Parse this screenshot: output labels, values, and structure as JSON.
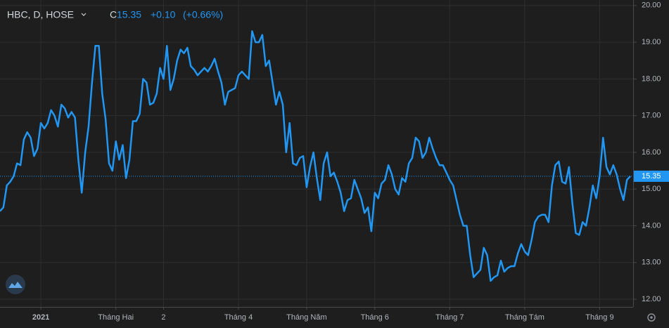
{
  "chart_data": {
    "type": "line",
    "symbol": "HBC, D, HOSE",
    "close_prefix": "C",
    "change": "+0.10",
    "change_pct": "(+0.66%)",
    "last": 15.35,
    "categories": [
      null,
      null,
      null,
      null,
      null,
      null,
      null,
      null,
      null,
      null,
      null,
      null,
      "2021",
      null,
      null,
      null,
      null,
      null,
      null,
      null,
      null,
      null,
      null,
      null,
      null,
      null,
      null,
      null,
      null,
      null,
      null,
      null,
      null,
      null,
      "Tháng Hai",
      null,
      null,
      null,
      null,
      null,
      null,
      null,
      null,
      null,
      null,
      null,
      null,
      null,
      "2",
      null,
      null,
      null,
      null,
      null,
      null,
      null,
      null,
      null,
      null,
      null,
      null,
      null,
      null,
      null,
      null,
      null,
      null,
      null,
      null,
      null,
      "Tháng 4",
      null,
      null,
      null,
      null,
      null,
      null,
      null,
      null,
      null,
      null,
      null,
      null,
      null,
      null,
      null,
      null,
      null,
      null,
      null,
      "Tháng Năm",
      null,
      null,
      null,
      null,
      null,
      null,
      null,
      null,
      null,
      null,
      null,
      null,
      null,
      null,
      null,
      null,
      null,
      null,
      null,
      "Tháng 6",
      null,
      null,
      null,
      null,
      null,
      null,
      null,
      null,
      null,
      null,
      null,
      null,
      null,
      null,
      null,
      null,
      null,
      null,
      null,
      null,
      null,
      "Tháng 7",
      null,
      null,
      null,
      null,
      null,
      null,
      null,
      null,
      null,
      null,
      null,
      null,
      null,
      null,
      null,
      null,
      null,
      null,
      null,
      null,
      null,
      "Tháng Tám",
      null,
      null,
      null,
      null,
      null,
      null,
      null,
      null,
      null,
      null,
      null,
      null,
      null,
      null,
      null,
      null,
      null,
      null,
      null,
      null,
      null,
      "Tháng 9",
      null,
      null,
      null,
      null,
      null,
      null,
      null,
      null,
      null
    ],
    "series": [
      {
        "name": "HBC",
        "color": "#2196f3",
        "values": [
          14.4,
          14.5,
          15.1,
          15.2,
          15.35,
          15.7,
          15.65,
          16.35,
          16.55,
          16.4,
          15.9,
          16.1,
          16.8,
          16.65,
          16.8,
          17.15,
          17.0,
          16.7,
          17.3,
          17.2,
          16.95,
          17.1,
          16.95,
          15.8,
          14.9,
          16.0,
          16.7,
          17.9,
          18.9,
          18.9,
          17.6,
          16.9,
          15.7,
          15.5,
          16.3,
          15.8,
          16.2,
          15.3,
          15.8,
          16.85,
          16.85,
          17.05,
          18.0,
          17.9,
          17.3,
          17.35,
          17.6,
          18.3,
          18.0,
          18.9,
          17.7,
          18.0,
          18.5,
          18.8,
          18.7,
          18.85,
          18.35,
          18.25,
          18.1,
          18.2,
          18.3,
          18.2,
          18.35,
          18.55,
          18.2,
          17.9,
          17.3,
          17.65,
          17.7,
          17.75,
          18.1,
          18.2,
          18.1,
          18.0,
          19.3,
          19.0,
          19.0,
          19.2,
          18.35,
          18.5,
          17.9,
          17.3,
          17.65,
          17.3,
          16.0,
          16.8,
          15.7,
          15.65,
          15.85,
          15.9,
          15.05,
          15.6,
          16.0,
          15.3,
          14.7,
          15.7,
          16.0,
          15.35,
          15.45,
          15.2,
          14.9,
          14.4,
          14.7,
          14.75,
          15.25,
          15.0,
          14.75,
          14.35,
          14.5,
          13.85,
          14.9,
          14.75,
          15.15,
          15.25,
          15.65,
          15.4,
          15.0,
          14.85,
          15.3,
          15.2,
          15.7,
          15.85,
          16.4,
          16.3,
          15.85,
          16.0,
          16.4,
          16.1,
          15.85,
          15.65,
          15.65,
          15.45,
          15.25,
          15.1,
          14.7,
          14.3,
          14.0,
          14.0,
          13.2,
          12.6,
          12.7,
          12.8,
          13.4,
          13.2,
          12.5,
          12.6,
          12.65,
          13.05,
          12.75,
          12.85,
          12.9,
          12.9,
          13.25,
          13.5,
          13.3,
          13.2,
          13.6,
          14.1,
          14.25,
          14.3,
          14.3,
          14.1,
          15.1,
          15.65,
          15.75,
          15.2,
          15.15,
          15.6,
          14.6,
          13.8,
          13.75,
          14.1,
          14.0,
          14.5,
          15.1,
          14.75,
          15.35,
          16.4,
          15.6,
          15.4,
          15.65,
          15.4,
          15.0,
          14.7,
          15.25,
          15.35
        ]
      }
    ],
    "ylim": [
      11.79,
      20.15
    ],
    "yticks": [
      {
        "value": 12,
        "label": "12.00"
      },
      {
        "value": 13,
        "label": "13.00"
      },
      {
        "value": 14,
        "label": "14.00"
      },
      {
        "value": 15,
        "label": "15.00"
      },
      {
        "value": 16,
        "label": "16.00"
      },
      {
        "value": 17,
        "label": "17.00"
      },
      {
        "value": 18,
        "label": "18.00"
      },
      {
        "value": 19,
        "label": "19.00"
      },
      {
        "value": 20,
        "label": "20.00"
      }
    ],
    "grid": true
  }
}
